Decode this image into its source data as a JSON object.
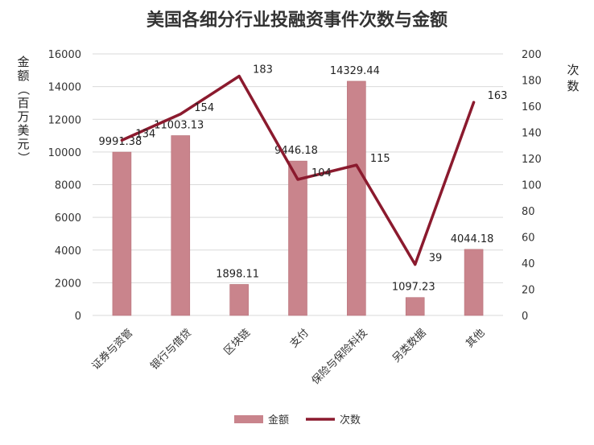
{
  "chart_data": {
    "type": "bar",
    "title": "美国各细分行业投融资事件次数与金额",
    "categories": [
      "证券与资管",
      "银行与借贷",
      "区块链",
      "支付",
      "保险与保险科技",
      "另类数据",
      "其他"
    ],
    "series": [
      {
        "name": "金额",
        "type": "bar",
        "axis": "left",
        "color": "#c9848c",
        "values": [
          9991.38,
          11003.13,
          1898.11,
          9446.18,
          14329.44,
          1097.23,
          4044.18
        ],
        "labels": [
          "9991.38",
          "11003.13",
          "1898.11",
          "9446.18",
          "14329.44",
          "1097.23",
          "4044.18"
        ]
      },
      {
        "name": "次数",
        "type": "line",
        "axis": "right",
        "color": "#8b1a2e",
        "values": [
          134,
          154,
          183,
          104,
          115,
          39,
          163
        ],
        "labels": [
          "134",
          "154",
          "183",
          "104",
          "115",
          "39",
          "163"
        ]
      }
    ],
    "y_left": {
      "label": [
        "金",
        "额",
        "（",
        "百",
        "万",
        "美",
        "元",
        "）"
      ],
      "min": 0,
      "max": 16000,
      "step": 2000,
      "ticks": [
        "0",
        "2000",
        "4000",
        "6000",
        "8000",
        "10000",
        "12000",
        "14000",
        "16000"
      ]
    },
    "y_right": {
      "label": [
        "次",
        "数"
      ],
      "min": 0,
      "max": 200,
      "step": 20,
      "ticks": [
        "0",
        "20",
        "40",
        "60",
        "80",
        "100",
        "120",
        "140",
        "160",
        "180",
        "200"
      ]
    },
    "grid": true,
    "legend": {
      "position": "bottom",
      "items": [
        "金额",
        "次数"
      ]
    }
  }
}
